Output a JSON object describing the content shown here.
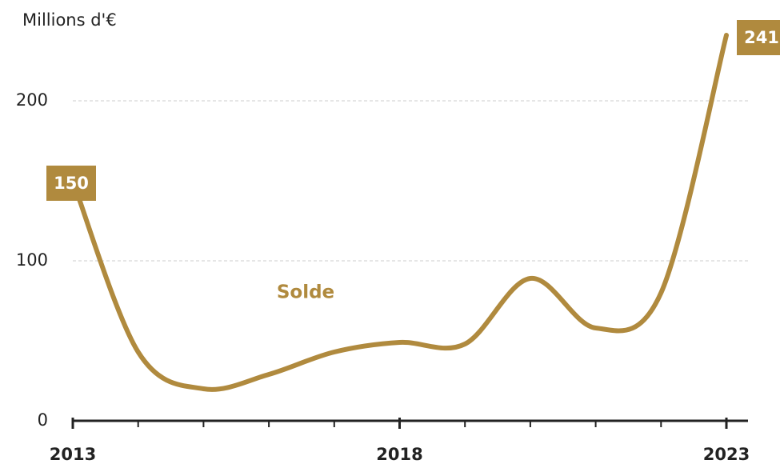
{
  "chart_data": {
    "type": "line",
    "y_label": "Millions d'€",
    "x": [
      2013,
      2014,
      2015,
      2016,
      2017,
      2018,
      2019,
      2020,
      2021,
      2022,
      2023
    ],
    "series": [
      {
        "name": "Solde",
        "color": "#b08a3e",
        "values": [
          150,
          43,
          20,
          29,
          43,
          49,
          48,
          89,
          58,
          80,
          241
        ]
      }
    ],
    "xlim": [
      2013,
      2023
    ],
    "xticks": [
      2013,
      2018,
      2023
    ],
    "ylim": [
      0,
      250
    ],
    "yticks": [
      0,
      100,
      200
    ],
    "grid": true
  }
}
